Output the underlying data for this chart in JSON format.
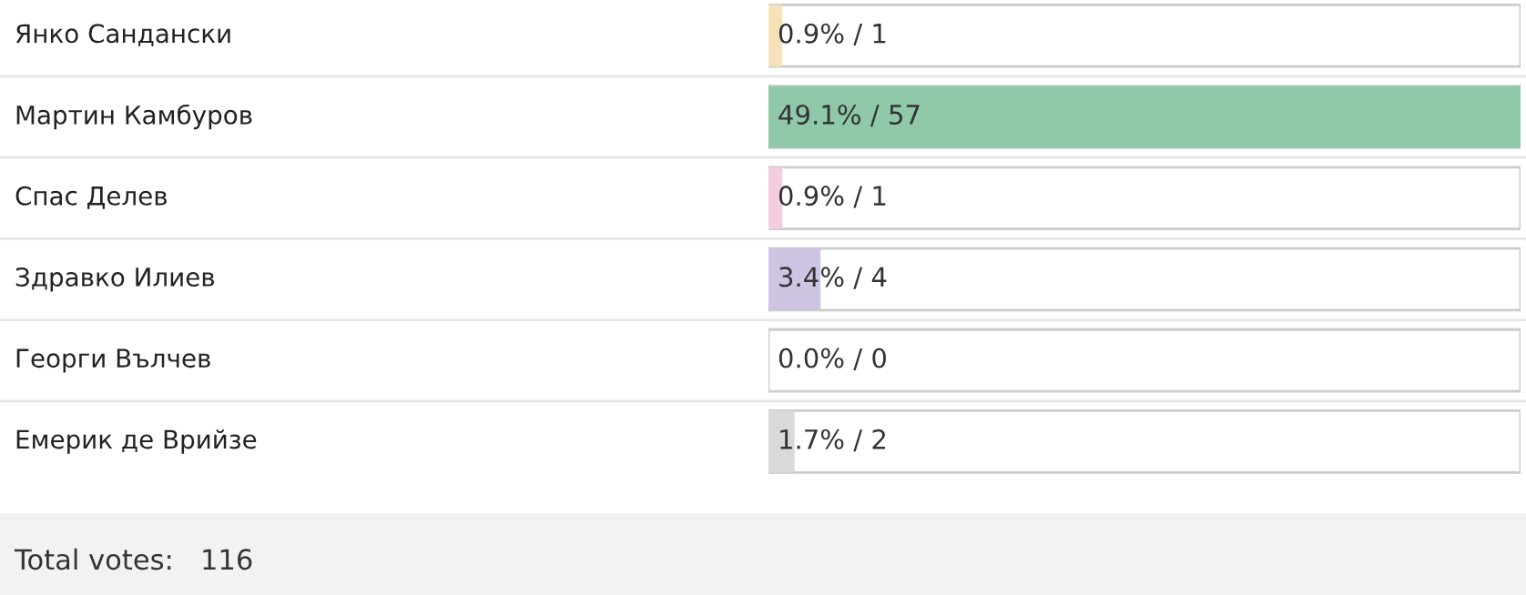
{
  "chart_data": {
    "type": "bar",
    "orientation": "horizontal",
    "categories": [
      "Янко Сандански",
      "Мартин Камбуров",
      "Спас Делев",
      "Здравко Илиев",
      "Георги Вълчев",
      "Емерик де Врийзе"
    ],
    "values": [
      0.9,
      49.1,
      0.9,
      3.4,
      0.0,
      1.7
    ],
    "colors": [
      "#f5e2b8",
      "#8fc9aa",
      "#f4cde0",
      "#cfc4e2",
      "#e8e8e8",
      "#d9d9d9"
    ],
    "value_labels": [
      "0.9% / 1",
      "49.1% / 57",
      "0.9% / 1",
      "3.4% / 4",
      "0.0% / 0",
      "1.7% / 2"
    ],
    "grid": "y",
    "annotations": [
      "Total votes:",
      "116"
    ]
  }
}
